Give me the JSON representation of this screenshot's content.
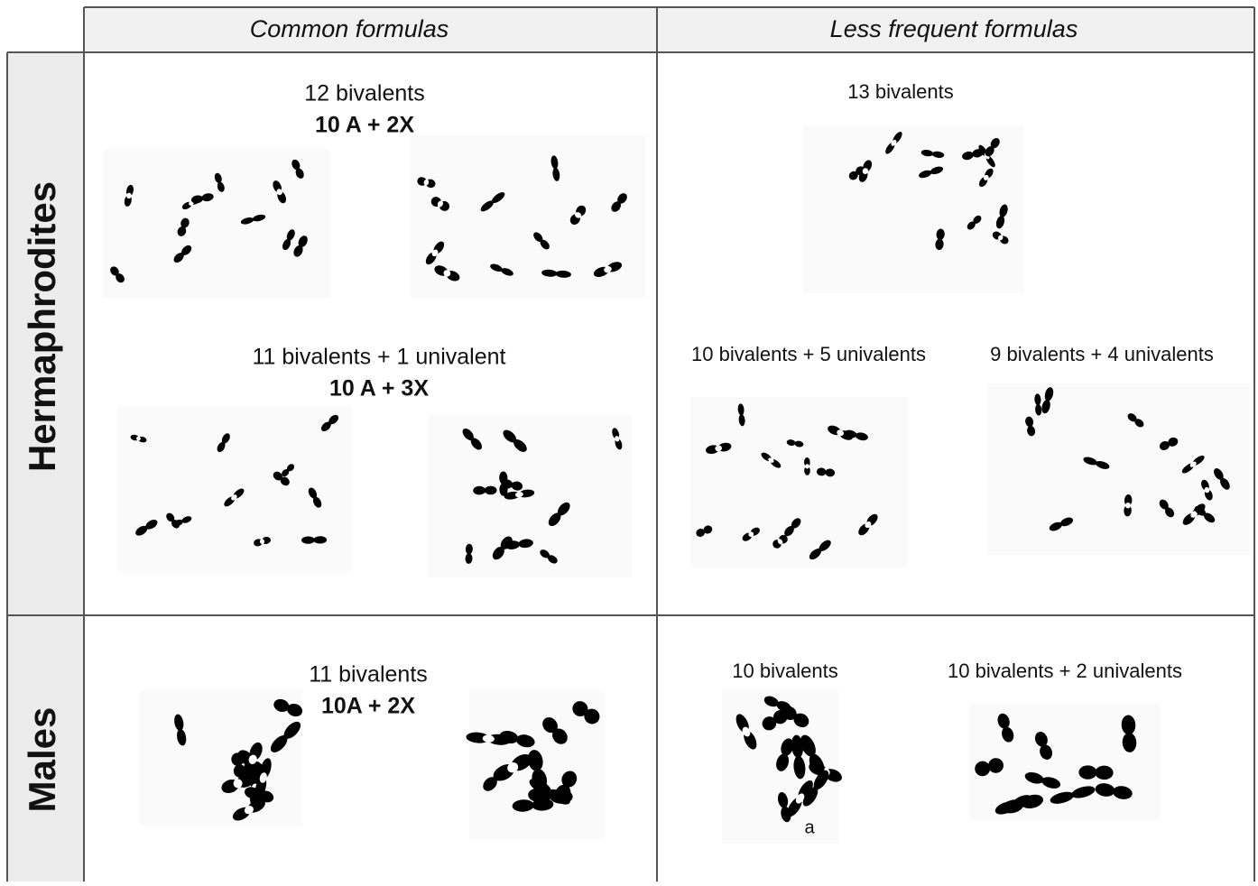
{
  "table": {
    "columns": [
      "Common formulas",
      "Less frequent formulas"
    ],
    "rows": [
      {
        "label": "Hermaphrodites",
        "cells": [
          [
            {
              "title": "12 bivalents",
              "formula": "10 A + 2X"
            },
            {
              "title": "11 bivalents + 1 univalent",
              "formula": "10 A + 3X"
            }
          ],
          [
            {
              "title": "13 bivalents"
            },
            {
              "title": "10 bivalents + 5 univalents"
            },
            {
              "title": "9 bivalents + 4 univalents"
            }
          ]
        ]
      },
      {
        "label": "Males",
        "cells": [
          [
            {
              "title": "11 bivalents",
              "formula": "10A + 2X"
            }
          ],
          [
            {
              "title": "10 bivalents",
              "figure_label": "a"
            },
            {
              "title": "10 bivalents + 2 univalents"
            }
          ]
        ]
      }
    ]
  }
}
